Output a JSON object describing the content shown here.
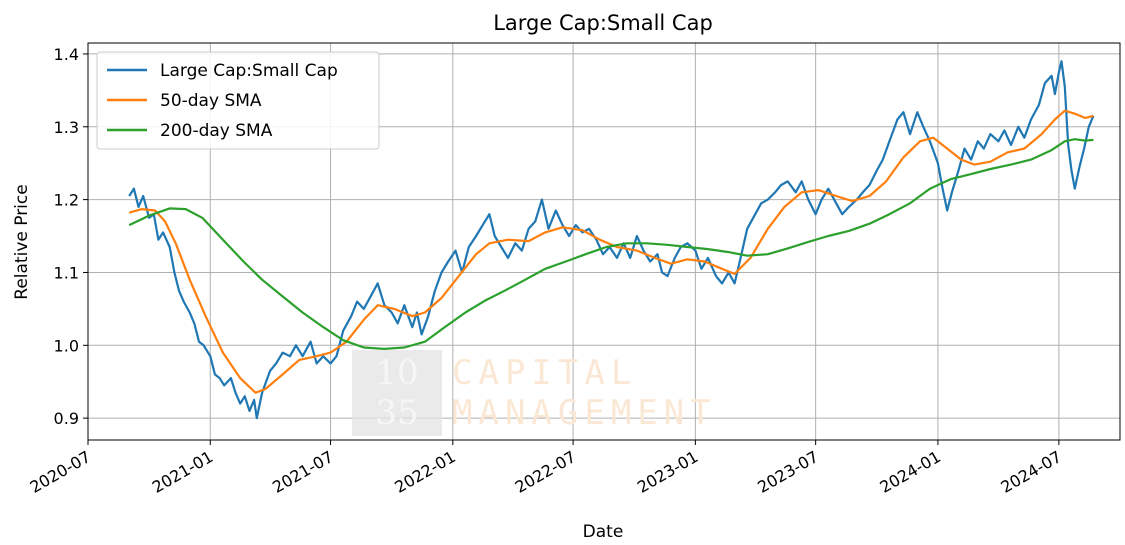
{
  "chart_data": {
    "type": "line",
    "title": "Large Cap:Small Cap",
    "xlabel": "Date",
    "ylabel": "Relative Price",
    "x_range": [
      "2020-07-01",
      "2024-10-01"
    ],
    "ylim": [
      0.87,
      1.415
    ],
    "grid": true,
    "legend_position": "top-left",
    "x_ticks": [
      "2020-07",
      "2021-01",
      "2021-07",
      "2022-01",
      "2022-07",
      "2023-01",
      "2023-07",
      "2024-01",
      "2024-07"
    ],
    "y_ticks": [
      "0.9",
      "1.0",
      "1.1",
      "1.2",
      "1.3",
      "1.4"
    ],
    "watermark": [
      "10",
      "35",
      "CAPITAL",
      "MANAGEMENT"
    ],
    "series": [
      {
        "name": "Large Cap:Small Cap",
        "color": "#1f77b4",
        "points": [
          [
            "2020-09-01",
            1.205
          ],
          [
            "2020-09-08",
            1.215
          ],
          [
            "2020-09-15",
            1.19
          ],
          [
            "2020-09-22",
            1.205
          ],
          [
            "2020-10-01",
            1.175
          ],
          [
            "2020-10-08",
            1.18
          ],
          [
            "2020-10-15",
            1.145
          ],
          [
            "2020-10-22",
            1.155
          ],
          [
            "2020-11-01",
            1.135
          ],
          [
            "2020-11-08",
            1.1
          ],
          [
            "2020-11-15",
            1.075
          ],
          [
            "2020-11-22",
            1.06
          ],
          [
            "2020-12-01",
            1.045
          ],
          [
            "2020-12-08",
            1.03
          ],
          [
            "2020-12-15",
            1.005
          ],
          [
            "2020-12-22",
            1.0
          ],
          [
            "2021-01-01",
            0.985
          ],
          [
            "2021-01-08",
            0.96
          ],
          [
            "2021-01-15",
            0.955
          ],
          [
            "2021-01-22",
            0.945
          ],
          [
            "2021-02-01",
            0.955
          ],
          [
            "2021-02-08",
            0.935
          ],
          [
            "2021-02-15",
            0.92
          ],
          [
            "2021-02-22",
            0.93
          ],
          [
            "2021-03-01",
            0.91
          ],
          [
            "2021-03-08",
            0.925
          ],
          [
            "2021-03-12",
            0.9
          ],
          [
            "2021-03-20",
            0.935
          ],
          [
            "2021-04-01",
            0.965
          ],
          [
            "2021-04-10",
            0.975
          ],
          [
            "2021-04-20",
            0.99
          ],
          [
            "2021-05-01",
            0.985
          ],
          [
            "2021-05-10",
            1.0
          ],
          [
            "2021-05-20",
            0.985
          ],
          [
            "2021-06-01",
            1.005
          ],
          [
            "2021-06-10",
            0.975
          ],
          [
            "2021-06-20",
            0.985
          ],
          [
            "2021-07-01",
            0.975
          ],
          [
            "2021-07-10",
            0.985
          ],
          [
            "2021-07-20",
            1.02
          ],
          [
            "2021-08-01",
            1.04
          ],
          [
            "2021-08-10",
            1.06
          ],
          [
            "2021-08-20",
            1.05
          ],
          [
            "2021-09-01",
            1.07
          ],
          [
            "2021-09-10",
            1.085
          ],
          [
            "2021-09-20",
            1.055
          ],
          [
            "2021-10-01",
            1.045
          ],
          [
            "2021-10-10",
            1.03
          ],
          [
            "2021-10-20",
            1.055
          ],
          [
            "2021-11-01",
            1.025
          ],
          [
            "2021-11-08",
            1.045
          ],
          [
            "2021-11-15",
            1.015
          ],
          [
            "2021-11-25",
            1.04
          ],
          [
            "2021-12-05",
            1.075
          ],
          [
            "2021-12-15",
            1.1
          ],
          [
            "2021-12-25",
            1.115
          ],
          [
            "2022-01-05",
            1.13
          ],
          [
            "2022-01-15",
            1.1
          ],
          [
            "2022-01-25",
            1.135
          ],
          [
            "2022-02-05",
            1.15
          ],
          [
            "2022-02-15",
            1.165
          ],
          [
            "2022-02-25",
            1.18
          ],
          [
            "2022-03-05",
            1.15
          ],
          [
            "2022-03-15",
            1.135
          ],
          [
            "2022-03-25",
            1.12
          ],
          [
            "2022-04-05",
            1.14
          ],
          [
            "2022-04-15",
            1.13
          ],
          [
            "2022-04-25",
            1.16
          ],
          [
            "2022-05-05",
            1.17
          ],
          [
            "2022-05-15",
            1.2
          ],
          [
            "2022-05-25",
            1.16
          ],
          [
            "2022-06-05",
            1.185
          ],
          [
            "2022-06-15",
            1.165
          ],
          [
            "2022-06-25",
            1.15
          ],
          [
            "2022-07-05",
            1.165
          ],
          [
            "2022-07-15",
            1.155
          ],
          [
            "2022-07-25",
            1.16
          ],
          [
            "2022-08-05",
            1.145
          ],
          [
            "2022-08-15",
            1.125
          ],
          [
            "2022-08-25",
            1.135
          ],
          [
            "2022-09-05",
            1.12
          ],
          [
            "2022-09-15",
            1.14
          ],
          [
            "2022-09-25",
            1.12
          ],
          [
            "2022-10-05",
            1.15
          ],
          [
            "2022-10-15",
            1.13
          ],
          [
            "2022-10-25",
            1.115
          ],
          [
            "2022-11-05",
            1.125
          ],
          [
            "2022-11-12",
            1.1
          ],
          [
            "2022-11-20",
            1.095
          ],
          [
            "2022-12-01",
            1.12
          ],
          [
            "2022-12-10",
            1.135
          ],
          [
            "2022-12-20",
            1.14
          ],
          [
            "2023-01-01",
            1.13
          ],
          [
            "2023-01-10",
            1.105
          ],
          [
            "2023-01-20",
            1.12
          ],
          [
            "2023-02-01",
            1.095
          ],
          [
            "2023-02-10",
            1.085
          ],
          [
            "2023-02-20",
            1.1
          ],
          [
            "2023-03-01",
            1.085
          ],
          [
            "2023-03-10",
            1.12
          ],
          [
            "2023-03-20",
            1.16
          ],
          [
            "2023-04-01",
            1.18
          ],
          [
            "2023-04-10",
            1.195
          ],
          [
            "2023-04-20",
            1.2
          ],
          [
            "2023-05-01",
            1.21
          ],
          [
            "2023-05-10",
            1.22
          ],
          [
            "2023-05-20",
            1.225
          ],
          [
            "2023-06-01",
            1.21
          ],
          [
            "2023-06-10",
            1.225
          ],
          [
            "2023-06-20",
            1.2
          ],
          [
            "2023-07-01",
            1.18
          ],
          [
            "2023-07-10",
            1.2
          ],
          [
            "2023-07-20",
            1.215
          ],
          [
            "2023-08-01",
            1.195
          ],
          [
            "2023-08-10",
            1.18
          ],
          [
            "2023-08-20",
            1.19
          ],
          [
            "2023-09-01",
            1.2
          ],
          [
            "2023-09-10",
            1.21
          ],
          [
            "2023-09-20",
            1.22
          ],
          [
            "2023-10-01",
            1.24
          ],
          [
            "2023-10-10",
            1.255
          ],
          [
            "2023-10-20",
            1.28
          ],
          [
            "2023-11-01",
            1.31
          ],
          [
            "2023-11-10",
            1.32
          ],
          [
            "2023-11-20",
            1.29
          ],
          [
            "2023-12-01",
            1.32
          ],
          [
            "2023-12-10",
            1.3
          ],
          [
            "2023-12-20",
            1.28
          ],
          [
            "2024-01-01",
            1.25
          ],
          [
            "2024-01-08",
            1.215
          ],
          [
            "2024-01-15",
            1.185
          ],
          [
            "2024-01-22",
            1.21
          ],
          [
            "2024-02-01",
            1.24
          ],
          [
            "2024-02-10",
            1.27
          ],
          [
            "2024-02-20",
            1.255
          ],
          [
            "2024-03-01",
            1.28
          ],
          [
            "2024-03-10",
            1.27
          ],
          [
            "2024-03-20",
            1.29
          ],
          [
            "2024-04-01",
            1.28
          ],
          [
            "2024-04-10",
            1.295
          ],
          [
            "2024-04-20",
            1.275
          ],
          [
            "2024-05-01",
            1.3
          ],
          [
            "2024-05-10",
            1.285
          ],
          [
            "2024-05-20",
            1.31
          ],
          [
            "2024-06-01",
            1.33
          ],
          [
            "2024-06-10",
            1.36
          ],
          [
            "2024-06-20",
            1.37
          ],
          [
            "2024-06-25",
            1.345
          ],
          [
            "2024-07-01",
            1.375
          ],
          [
            "2024-07-05",
            1.39
          ],
          [
            "2024-07-10",
            1.355
          ],
          [
            "2024-07-15",
            1.275
          ],
          [
            "2024-07-20",
            1.24
          ],
          [
            "2024-07-25",
            1.215
          ],
          [
            "2024-08-01",
            1.245
          ],
          [
            "2024-08-08",
            1.27
          ],
          [
            "2024-08-15",
            1.3
          ],
          [
            "2024-08-22",
            1.315
          ]
        ]
      },
      {
        "name": "50-day SMA",
        "color": "#ff7f0e",
        "points": [
          [
            "2020-09-01",
            1.182
          ],
          [
            "2020-09-20",
            1.187
          ],
          [
            "2020-10-10",
            1.185
          ],
          [
            "2020-10-25",
            1.17
          ],
          [
            "2020-11-10",
            1.14
          ],
          [
            "2020-12-01",
            1.09
          ],
          [
            "2020-12-25",
            1.04
          ],
          [
            "2021-01-20",
            0.99
          ],
          [
            "2021-02-15",
            0.955
          ],
          [
            "2021-03-10",
            0.935
          ],
          [
            "2021-03-25",
            0.94
          ],
          [
            "2021-04-20",
            0.96
          ],
          [
            "2021-05-15",
            0.98
          ],
          [
            "2021-06-10",
            0.985
          ],
          [
            "2021-07-01",
            0.99
          ],
          [
            "2021-07-25",
            1.005
          ],
          [
            "2021-08-20",
            1.035
          ],
          [
            "2021-09-10",
            1.055
          ],
          [
            "2021-10-05",
            1.05
          ],
          [
            "2021-11-01",
            1.04
          ],
          [
            "2021-11-20",
            1.045
          ],
          [
            "2021-12-15",
            1.065
          ],
          [
            "2022-01-10",
            1.095
          ],
          [
            "2022-02-05",
            1.125
          ],
          [
            "2022-02-25",
            1.14
          ],
          [
            "2022-03-25",
            1.145
          ],
          [
            "2022-04-25",
            1.143
          ],
          [
            "2022-05-20",
            1.155
          ],
          [
            "2022-06-15",
            1.162
          ],
          [
            "2022-07-15",
            1.158
          ],
          [
            "2022-08-10",
            1.145
          ],
          [
            "2022-09-05",
            1.135
          ],
          [
            "2022-10-05",
            1.13
          ],
          [
            "2022-11-01",
            1.12
          ],
          [
            "2022-11-25",
            1.112
          ],
          [
            "2022-12-20",
            1.118
          ],
          [
            "2023-01-15",
            1.115
          ],
          [
            "2023-02-10",
            1.105
          ],
          [
            "2023-03-01",
            1.098
          ],
          [
            "2023-03-25",
            1.12
          ],
          [
            "2023-04-20",
            1.16
          ],
          [
            "2023-05-15",
            1.19
          ],
          [
            "2023-06-10",
            1.21
          ],
          [
            "2023-07-05",
            1.213
          ],
          [
            "2023-08-01",
            1.205
          ],
          [
            "2023-08-25",
            1.198
          ],
          [
            "2023-09-20",
            1.205
          ],
          [
            "2023-10-15",
            1.225
          ],
          [
            "2023-11-10",
            1.258
          ],
          [
            "2023-12-05",
            1.28
          ],
          [
            "2023-12-25",
            1.285
          ],
          [
            "2024-01-15",
            1.27
          ],
          [
            "2024-02-05",
            1.255
          ],
          [
            "2024-02-25",
            1.248
          ],
          [
            "2024-03-20",
            1.252
          ],
          [
            "2024-04-15",
            1.265
          ],
          [
            "2024-05-10",
            1.27
          ],
          [
            "2024-06-05",
            1.29
          ],
          [
            "2024-06-25",
            1.31
          ],
          [
            "2024-07-10",
            1.322
          ],
          [
            "2024-07-25",
            1.318
          ],
          [
            "2024-08-10",
            1.312
          ],
          [
            "2024-08-22",
            1.315
          ]
        ]
      },
      {
        "name": "200-day SMA",
        "color": "#2ca02c",
        "points": [
          [
            "2020-09-01",
            1.165
          ],
          [
            "2020-10-01",
            1.178
          ],
          [
            "2020-11-01",
            1.188
          ],
          [
            "2020-11-25",
            1.187
          ],
          [
            "2020-12-20",
            1.175
          ],
          [
            "2021-01-20",
            1.145
          ],
          [
            "2021-02-20",
            1.115
          ],
          [
            "2021-03-20",
            1.09
          ],
          [
            "2021-04-20",
            1.067
          ],
          [
            "2021-05-20",
            1.045
          ],
          [
            "2021-06-20",
            1.025
          ],
          [
            "2021-07-20",
            1.007
          ],
          [
            "2021-08-20",
            0.997
          ],
          [
            "2021-09-20",
            0.995
          ],
          [
            "2021-10-20",
            0.997
          ],
          [
            "2021-11-20",
            1.005
          ],
          [
            "2021-12-20",
            1.025
          ],
          [
            "2022-01-20",
            1.045
          ],
          [
            "2022-02-20",
            1.062
          ],
          [
            "2022-03-20",
            1.075
          ],
          [
            "2022-04-20",
            1.09
          ],
          [
            "2022-05-20",
            1.105
          ],
          [
            "2022-06-20",
            1.115
          ],
          [
            "2022-07-20",
            1.125
          ],
          [
            "2022-08-20",
            1.135
          ],
          [
            "2022-09-20",
            1.14
          ],
          [
            "2022-10-20",
            1.14
          ],
          [
            "2022-11-20",
            1.138
          ],
          [
            "2022-12-20",
            1.135
          ],
          [
            "2023-01-20",
            1.132
          ],
          [
            "2023-02-20",
            1.128
          ],
          [
            "2023-03-20",
            1.123
          ],
          [
            "2023-04-20",
            1.125
          ],
          [
            "2023-05-20",
            1.133
          ],
          [
            "2023-06-20",
            1.142
          ],
          [
            "2023-07-20",
            1.15
          ],
          [
            "2023-08-20",
            1.157
          ],
          [
            "2023-09-20",
            1.167
          ],
          [
            "2023-10-20",
            1.18
          ],
          [
            "2023-11-20",
            1.195
          ],
          [
            "2023-12-20",
            1.215
          ],
          [
            "2024-01-20",
            1.228
          ],
          [
            "2024-02-20",
            1.235
          ],
          [
            "2024-03-20",
            1.242
          ],
          [
            "2024-04-20",
            1.248
          ],
          [
            "2024-05-20",
            1.255
          ],
          [
            "2024-06-20",
            1.268
          ],
          [
            "2024-07-10",
            1.28
          ],
          [
            "2024-07-25",
            1.283
          ],
          [
            "2024-08-10",
            1.281
          ],
          [
            "2024-08-22",
            1.282
          ]
        ]
      }
    ]
  }
}
